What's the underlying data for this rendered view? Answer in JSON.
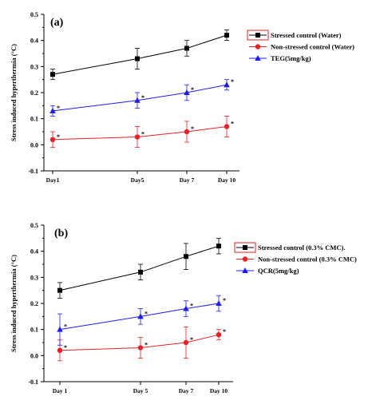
{
  "chart_data": [
    {
      "type": "line",
      "panel_label": "(a)",
      "ylabel": "Stress induced hyperthermia (°C)",
      "ylim": [
        -0.1,
        0.5
      ],
      "yticks": [
        "-0.1",
        "0.0",
        "0.1",
        "0.2",
        "0.3",
        "0.4",
        "0.5"
      ],
      "categories": [
        "Day1",
        "Day5",
        "Day 7",
        "Day 10"
      ],
      "x": [
        1,
        5,
        7,
        10
      ],
      "legend_position": "top-right",
      "series": [
        {
          "name": "Stressed  control (Water)",
          "color": "#000000",
          "marker": "square",
          "values": [
            0.27,
            0.33,
            0.37,
            0.42
          ],
          "errors": [
            0.02,
            0.04,
            0.03,
            0.02
          ],
          "stars": [
            false,
            false,
            false,
            false
          ]
        },
        {
          "name": "Non-stressed control (Water)",
          "color": "#e8202a",
          "marker": "circle",
          "values": [
            0.02,
            0.03,
            0.05,
            0.07
          ],
          "errors": [
            0.03,
            0.04,
            0.04,
            0.04
          ],
          "stars": [
            true,
            true,
            true,
            true
          ]
        },
        {
          "name": "TEG(5mg/kg)",
          "color": "#1d1de6",
          "marker": "triangle",
          "values": [
            0.13,
            0.17,
            0.2,
            0.23
          ],
          "errors": [
            0.02,
            0.03,
            0.03,
            0.02
          ],
          "stars": [
            true,
            true,
            true,
            true
          ]
        }
      ]
    },
    {
      "type": "line",
      "panel_label": "(b)",
      "ylabel": "Stress induced hyperthermia (°C)",
      "ylim": [
        -0.1,
        0.5
      ],
      "yticks": [
        "-0.1",
        "0.0",
        "0.1",
        "0.2",
        "0.3",
        "0.4",
        "0.5"
      ],
      "categories": [
        "Day 1",
        "Day 5",
        "Day 7",
        "Day 10"
      ],
      "x": [
        1,
        5,
        7,
        10
      ],
      "legend_position": "right",
      "series": [
        {
          "name": "Stressed control (0.3% CMC).",
          "color": "#000000",
          "marker": "square",
          "values": [
            0.25,
            0.32,
            0.38,
            0.42
          ],
          "errors": [
            0.03,
            0.03,
            0.05,
            0.03
          ],
          "stars": [
            false,
            false,
            false,
            false
          ]
        },
        {
          "name": "Non-stressed control (0.3% CMC)",
          "color": "#e8202a",
          "marker": "circle",
          "values": [
            0.02,
            0.03,
            0.05,
            0.08
          ],
          "errors": [
            0.04,
            0.04,
            0.06,
            0.02
          ],
          "stars": [
            true,
            true,
            true,
            true
          ]
        },
        {
          "name": "QCR(5mg/kg)",
          "color": "#1d1de6",
          "marker": "triangle",
          "values": [
            0.1,
            0.15,
            0.18,
            0.2
          ],
          "errors": [
            0.06,
            0.03,
            0.03,
            0.03
          ],
          "stars": [
            true,
            true,
            true,
            true
          ]
        }
      ]
    }
  ]
}
